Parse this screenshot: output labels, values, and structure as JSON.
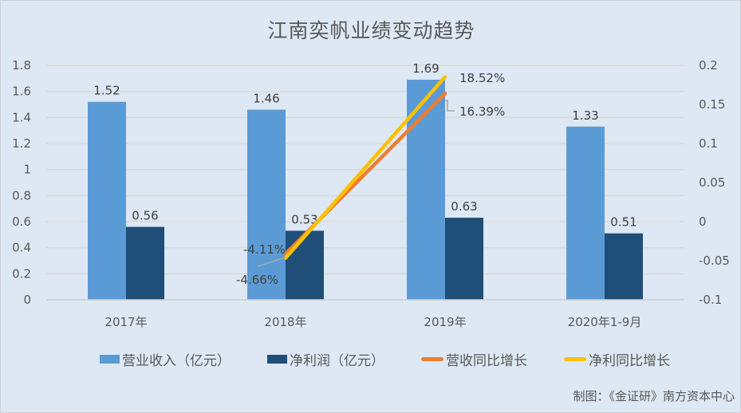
{
  "title": "江南奕帆业绩变动趋势",
  "credit": "制图：《金证研》南方资本中心",
  "colors": {
    "revenue": "#5b9bd5",
    "net_profit": "#1f4e79",
    "revenue_yoy": "#ed7d31",
    "profit_yoy": "#ffc000",
    "background": "#dde8f4",
    "grid": "#d9d9d9"
  },
  "legend": [
    {
      "label": "营业收入（亿元）",
      "type": "bar",
      "color": "#5b9bd5"
    },
    {
      "label": "净利润（亿元）",
      "type": "bar",
      "color": "#1f4e79"
    },
    {
      "label": "营收同比增长",
      "type": "line",
      "color": "#ed7d31"
    },
    {
      "label": "净利同比增长",
      "type": "line",
      "color": "#ffc000"
    }
  ],
  "chart_data": {
    "type": "bar+line",
    "title": "江南奕帆业绩变动趋势",
    "categories": [
      "2017年",
      "2018年",
      "2019年",
      "2020年1-9月"
    ],
    "series": [
      {
        "name": "营业收入（亿元）",
        "type": "bar",
        "axis": "left",
        "values": [
          1.52,
          1.46,
          1.69,
          1.33
        ],
        "labels": [
          "1.52",
          "1.46",
          "1.69",
          "1.33"
        ]
      },
      {
        "name": "净利润（亿元）",
        "type": "bar",
        "axis": "left",
        "values": [
          0.56,
          0.53,
          0.63,
          0.51
        ],
        "labels": [
          "0.56",
          "0.53",
          "0.63",
          "0.51"
        ]
      },
      {
        "name": "营收同比增长",
        "type": "line",
        "axis": "right",
        "values": [
          null,
          -0.0411,
          0.1639,
          null
        ],
        "labels": [
          null,
          "-4.11%",
          "16.39%",
          null
        ]
      },
      {
        "name": "净利同比增长",
        "type": "line",
        "axis": "right",
        "values": [
          null,
          -0.0466,
          0.1852,
          null
        ],
        "labels": [
          null,
          "-4.66%",
          "18.52%",
          null
        ]
      }
    ],
    "left_axis": {
      "min": 0,
      "max": 1.8,
      "step": 0.2,
      "ticks": [
        "0",
        "0.2",
        "0.4",
        "0.6",
        "0.8",
        "1",
        "1.2",
        "1.4",
        "1.6",
        "1.8"
      ]
    },
    "right_axis": {
      "min": -0.1,
      "max": 0.2,
      "step": 0.05,
      "ticks": [
        "-0.1",
        "-0.05",
        "0",
        "0.05",
        "0.1",
        "0.15",
        "0.2"
      ]
    },
    "grid": true,
    "legend_position": "bottom"
  }
}
